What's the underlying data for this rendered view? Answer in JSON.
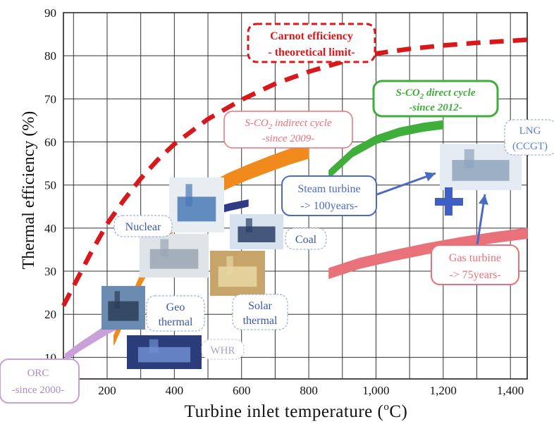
{
  "chart_data": {
    "type": "line",
    "xlabel": "Turbine inlet temperature (",
    "xlabel_sup": "o",
    "xlabel_tail": "C)",
    "ylabel": "Thermal efficiency (%)",
    "xlim": [
      70,
      1450
    ],
    "ylim": [
      5,
      90
    ],
    "x_ticks": [
      200,
      400,
      600,
      800,
      1000,
      1200,
      1400
    ],
    "x_tick_labels": [
      "200",
      "400",
      "600",
      "800",
      "1,000",
      "1,200",
      "1,400"
    ],
    "y_ticks": [
      10,
      20,
      30,
      40,
      50,
      60,
      70,
      80,
      90
    ],
    "grid": true,
    "series": [
      {
        "key": "carnot",
        "color": "#d7191c",
        "style": "dashed",
        "x": [
          70,
          150,
          200,
          250,
          300,
          350,
          400,
          500,
          600,
          700,
          800,
          900,
          1000,
          1100,
          1200,
          1300,
          1450
        ],
        "y": [
          22,
          34,
          41,
          46.5,
          51.5,
          55.8,
          59.5,
          65.3,
          69.8,
          73.5,
          76.3,
          78.6,
          80.5,
          81.6,
          82.4,
          83.0,
          83.7
        ]
      },
      {
        "key": "orc",
        "color": "#c9a0d8",
        "style": "band",
        "x": [
          75,
          120,
          160,
          200,
          225
        ],
        "y": [
          10,
          12.5,
          14.5,
          16.5,
          17.5
        ],
        "w": [
          1.6,
          1.8,
          2.0,
          2.2,
          2.3
        ]
      },
      {
        "key": "geo_nuclear",
        "color": "#f08a1c",
        "style": "band",
        "x": [
          220,
          260,
          300,
          340,
          380,
          420,
          460,
          500,
          560,
          620,
          680,
          740,
          800
        ],
        "y": [
          14,
          21,
          28,
          34,
          39,
          43,
          46.3,
          48.5,
          51,
          53,
          54.8,
          56.5,
          58
        ],
        "w": [
          2.2,
          2.4,
          2.6,
          2.8,
          3.0,
          3.1,
          3.2,
          3.3,
          3.4,
          3.4,
          3.5,
          3.5,
          3.6
        ]
      },
      {
        "key": "steam",
        "color": "#2e3a87",
        "style": "band",
        "x": [
          470,
          520,
          570,
          620
        ],
        "y": [
          42.5,
          44,
          45,
          45.8
        ],
        "w": [
          1.6,
          1.6,
          1.6,
          1.5
        ]
      },
      {
        "key": "sco2_direct",
        "color": "#3fae3a",
        "style": "band",
        "x": [
          860,
          930,
          1000,
          1070,
          1140,
          1200
        ],
        "y": [
          52.5,
          57.5,
          60.5,
          62.3,
          63.4,
          64.0
        ],
        "w": [
          1.9,
          1.9,
          1.9,
          1.9,
          1.9,
          1.9
        ]
      },
      {
        "key": "gas",
        "color": "#e8717a",
        "style": "band",
        "x": [
          860,
          950,
          1050,
          1150,
          1250,
          1350,
          1450
        ],
        "y": [
          29.5,
          31.8,
          33.6,
          35.2,
          36.6,
          37.8,
          38.8
        ],
        "w": [
          2.4,
          2.4,
          2.4,
          2.4,
          2.4,
          2.4,
          2.4
        ]
      }
    ],
    "annotations": {
      "carnot": [
        "Carnot efficiency",
        "- theoretical limit-"
      ],
      "sco2_indirect": [
        "S-CO",
        "2",
        " indirect cycle",
        "-since 2009-"
      ],
      "sco2_direct": [
        "S-CO",
        "2",
        " direct cycle",
        "-since 2012-"
      ],
      "steam": [
        "Steam turbine",
        "-> 100years-"
      ],
      "gas": [
        "Gas turbine",
        "-> 75years-"
      ],
      "lng": [
        "LNG",
        "(CCGT)"
      ],
      "nuclear": "Nuclear",
      "coal": "Coal",
      "geo": [
        "Geo",
        "thermal"
      ],
      "solar": [
        "Solar",
        "thermal"
      ],
      "whr": "WHR",
      "orc": [
        "ORC",
        "-since 2000-"
      ]
    },
    "colors": {
      "carnot": "#d7191c",
      "sco2_indirect": "#e8717a",
      "sco2_direct": "#3fae3a",
      "steam": "#4a6bc4",
      "gas": "#e8717a",
      "lng": "#5a7fc8",
      "plus": "#3f5fc4",
      "small_box": "#8aa0d6"
    },
    "icons": [
      "plant-photos",
      "plus-icon",
      "arrow-icon"
    ]
  }
}
